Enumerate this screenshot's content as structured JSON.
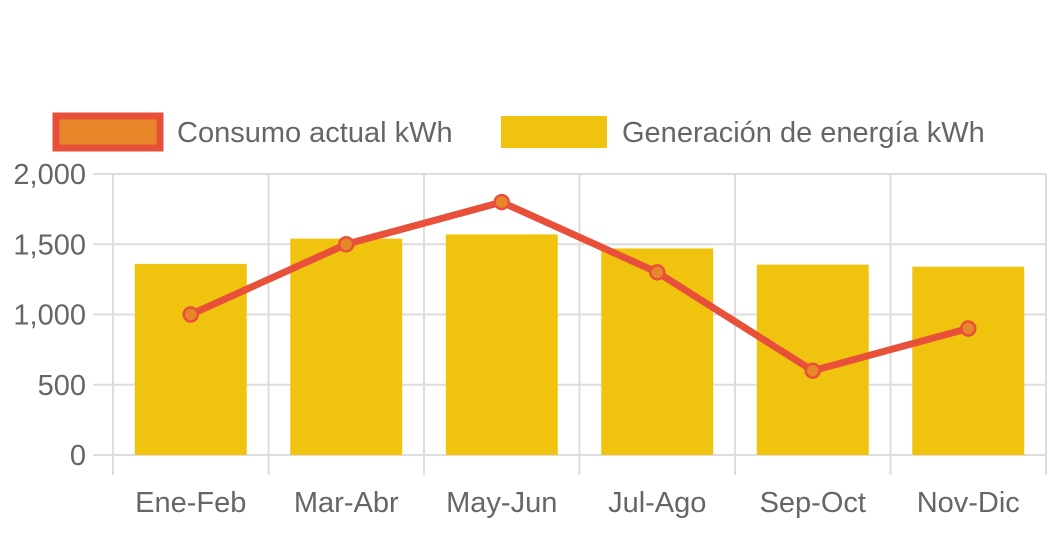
{
  "chart_data": {
    "type": "bar",
    "categories": [
      "Ene-Feb",
      "Mar-Abr",
      "May-Jun",
      "Jul-Ago",
      "Sep-Oct",
      "Nov-Dic"
    ],
    "series": [
      {
        "name": "Consumo actual kWh",
        "type": "line",
        "values": [
          1000,
          1500,
          1800,
          1300,
          600,
          900
        ],
        "color": "#e8503a",
        "point_color": "#e8862a"
      },
      {
        "name": "Generación de energía kWh",
        "type": "bar",
        "values": [
          1360,
          1540,
          1570,
          1470,
          1355,
          1340
        ],
        "color": "#f0c30f"
      }
    ],
    "y_ticks": [
      "0",
      "500",
      "1,000",
      "1,500",
      "2,000"
    ],
    "y_tick_values": [
      0,
      500,
      1000,
      1500,
      2000
    ],
    "ylim": [
      0,
      2000
    ],
    "grid": true,
    "legend_position": "top",
    "title": "",
    "xlabel": "",
    "ylabel": ""
  }
}
